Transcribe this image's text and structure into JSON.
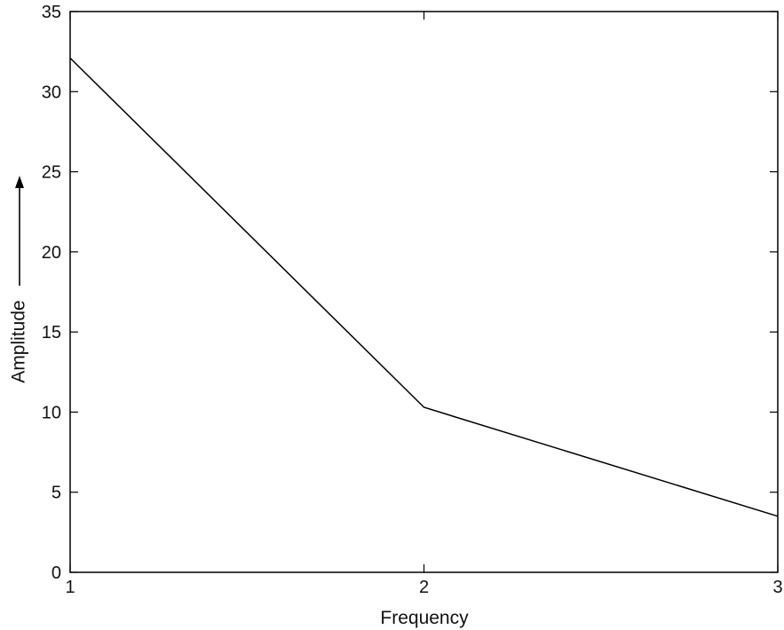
{
  "chart_data": {
    "type": "line",
    "title": "",
    "xlabel": "Frequency",
    "ylabel": "Amplitude",
    "ylabel_arrow": "up-arrow",
    "xlim": [
      1,
      3
    ],
    "ylim": [
      0,
      35
    ],
    "xticks": [
      1,
      2,
      3
    ],
    "yticks": [
      0,
      5,
      10,
      15,
      20,
      25,
      30,
      35
    ],
    "grid": false,
    "legend": "none",
    "series": [
      {
        "x": [
          1,
          2,
          3
        ],
        "y": [
          32.1,
          10.3,
          3.5
        ],
        "color": "#000000"
      }
    ]
  }
}
